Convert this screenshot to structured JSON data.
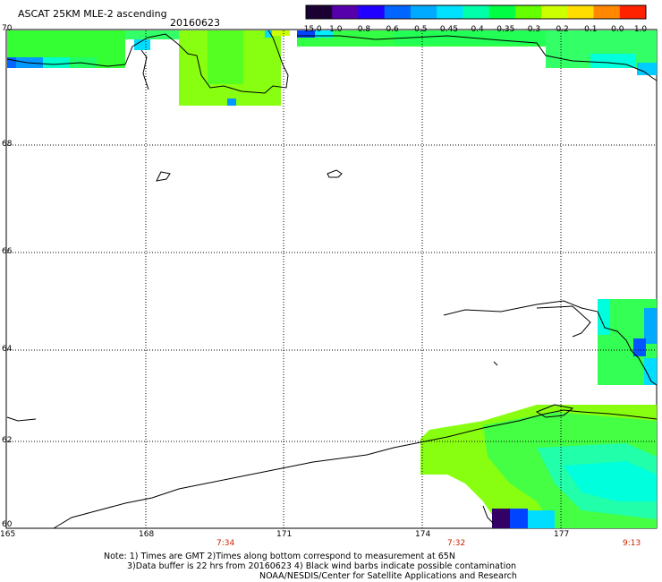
{
  "title": "ASCAT 25KM MLE-2 ascending",
  "date": "20160623",
  "colorbar": {
    "labels": [
      "-15.0",
      "-1.0",
      "-0.8",
      "-0.6",
      "-0.5",
      "-0.45",
      "-0.4",
      "-0.35",
      "-0.3",
      "-0.2",
      "-0.1",
      "0.0",
      "1.0"
    ],
    "colors": [
      "#1a0033",
      "#5500aa",
      "#2200ff",
      "#0066ff",
      "#00aaff",
      "#00e0ff",
      "#00ffaa",
      "#00ff44",
      "#66ff00",
      "#ccff00",
      "#ffdd00",
      "#ff8800",
      "#ff2200"
    ]
  },
  "axes": {
    "lat_labels": [
      "70",
      "68",
      "66",
      "64",
      "62",
      "60"
    ],
    "lon_labels": [
      "165",
      "168",
      "171",
      "174",
      "177"
    ]
  },
  "times": [
    "7:34",
    "7:32",
    "9:13"
  ],
  "notes": [
    "Note: 1) Times are GMT 2)Times along bottom correspond to measurement at 65N",
    "3)Data buffer is 22 hrs from 20160623 4) Black wind barbs indicate possible contamination",
    "NOAA/NESDIS/Center for Satellite Applications and Research"
  ]
}
